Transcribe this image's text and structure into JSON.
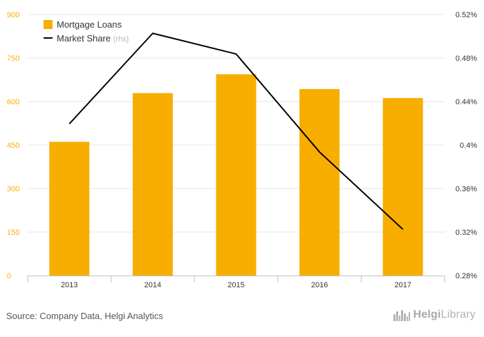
{
  "chart_data": {
    "type": "bar",
    "categories": [
      "2013",
      "2014",
      "2015",
      "2016",
      "2017"
    ],
    "series": [
      {
        "name": "Mortgage Loans",
        "kind": "bar",
        "axis": "left",
        "color": "#F7AE00",
        "values": [
          461,
          629,
          694,
          643,
          612
        ]
      },
      {
        "name": "Market Share",
        "kind": "line",
        "axis": "right",
        "color": "#000000",
        "values": [
          0.4195,
          0.5027,
          0.4837,
          0.3936,
          0.3225
        ]
      }
    ],
    "legend": {
      "position": "top-left",
      "items": [
        {
          "label": "Mortgage Loans",
          "suffix": ""
        },
        {
          "label": "Market Share",
          "suffix": "(rhs)"
        }
      ]
    },
    "y_left": {
      "ylim": [
        0,
        900
      ],
      "ticks": [
        "0",
        "150",
        "300",
        "450",
        "600",
        "750",
        "900"
      ]
    },
    "y_right": {
      "ylim": [
        0.28,
        0.52
      ],
      "ticks": [
        "0.28%",
        "0.32%",
        "0.36%",
        "0.4%",
        "0.44%",
        "0.48%",
        "0.52%"
      ]
    },
    "grid": true
  },
  "footer": {
    "source": "Source: Company Data, Helgi Analytics",
    "brand_bold": "Helgi",
    "brand_rest": "Library"
  },
  "colors": {
    "bar": "#F7AE00",
    "line": "#000000",
    "left_ticks": "#F7AE00",
    "right_ticks": "#333333",
    "grid": "#E6E6E6"
  }
}
